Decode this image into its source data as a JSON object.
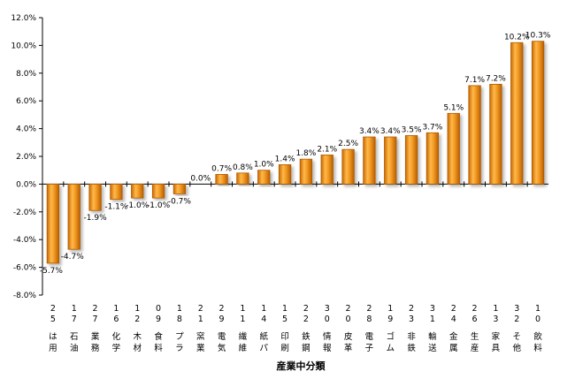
{
  "chart_data": {
    "type": "bar",
    "xlabel": "産業中分類",
    "ylabel": "",
    "ylim": [
      -0.08,
      0.12
    ],
    "y_tick_labels": [
      "-8.0%",
      "-6.0%",
      "-4.0%",
      "-2.0%",
      "0.0%",
      "2.0%",
      "4.0%",
      "6.0%",
      "8.0%",
      "10.0%",
      "12.0%"
    ],
    "grid": false,
    "bar_color": "#f0961e",
    "bar_edge_color": "#b05a00",
    "categories": [
      {
        "code": [
          "2",
          "5"
        ],
        "name": [
          "は",
          "用"
        ],
        "value": -0.057,
        "label": "-5.7%"
      },
      {
        "code": [
          "1",
          "7"
        ],
        "name": [
          "石",
          "油"
        ],
        "value": -0.047,
        "label": "-4.7%"
      },
      {
        "code": [
          "2",
          "7"
        ],
        "name": [
          "業",
          "務"
        ],
        "value": -0.019,
        "label": "-1.9%"
      },
      {
        "code": [
          "1",
          "6"
        ],
        "name": [
          "化",
          "学"
        ],
        "value": -0.011,
        "label": "-1.1%"
      },
      {
        "code": [
          "1",
          "2"
        ],
        "name": [
          "木",
          "材"
        ],
        "value": -0.01,
        "label": "-1.0%"
      },
      {
        "code": [
          "0",
          "9"
        ],
        "name": [
          "食",
          "料"
        ],
        "value": -0.01,
        "label": "-1.0%"
      },
      {
        "code": [
          "1",
          "8"
        ],
        "name": [
          "プ",
          "ラ"
        ],
        "value": -0.007,
        "label": "-0.7%"
      },
      {
        "code": [
          "2",
          "1"
        ],
        "name": [
          "窯",
          "業"
        ],
        "value": 0.0,
        "label": "0.0%"
      },
      {
        "code": [
          "2",
          "9"
        ],
        "name": [
          "電",
          "気"
        ],
        "value": 0.007,
        "label": "0.7%"
      },
      {
        "code": [
          "1",
          "1"
        ],
        "name": [
          "繊",
          "維"
        ],
        "value": 0.008,
        "label": "0.8%"
      },
      {
        "code": [
          "1",
          "4"
        ],
        "name": [
          "紙",
          "パ"
        ],
        "value": 0.01,
        "label": "1.0%"
      },
      {
        "code": [
          "1",
          "5"
        ],
        "name": [
          "印",
          "刷"
        ],
        "value": 0.014,
        "label": "1.4%"
      },
      {
        "code": [
          "2",
          "2"
        ],
        "name": [
          "鉄",
          "鋼"
        ],
        "value": 0.018,
        "label": "1.8%"
      },
      {
        "code": [
          "3",
          "0"
        ],
        "name": [
          "情",
          "報"
        ],
        "value": 0.021,
        "label": "2.1%"
      },
      {
        "code": [
          "2",
          "0"
        ],
        "name": [
          "皮",
          "革"
        ],
        "value": 0.025,
        "label": "2.5%"
      },
      {
        "code": [
          "2",
          "8"
        ],
        "name": [
          "電",
          "子"
        ],
        "value": 0.034,
        "label": "3.4%"
      },
      {
        "code": [
          "1",
          "9"
        ],
        "name": [
          "ゴ",
          "ム"
        ],
        "value": 0.034,
        "label": "3.4%"
      },
      {
        "code": [
          "2",
          "3"
        ],
        "name": [
          "非",
          "鉄"
        ],
        "value": 0.035,
        "label": "3.5%"
      },
      {
        "code": [
          "3",
          "1"
        ],
        "name": [
          "輸",
          "送"
        ],
        "value": 0.037,
        "label": "3.7%"
      },
      {
        "code": [
          "2",
          "4"
        ],
        "name": [
          "金",
          "属"
        ],
        "value": 0.051,
        "label": "5.1%"
      },
      {
        "code": [
          "2",
          "6"
        ],
        "name": [
          "生",
          "産"
        ],
        "value": 0.071,
        "label": "7.1%"
      },
      {
        "code": [
          "1",
          "3"
        ],
        "name": [
          "家",
          "具"
        ],
        "value": 0.072,
        "label": "7.2%"
      },
      {
        "code": [
          "3",
          "2"
        ],
        "name": [
          "そ",
          "他"
        ],
        "value": 0.102,
        "label": "10.2%"
      },
      {
        "code": [
          "1",
          "0"
        ],
        "name": [
          "飲",
          "料"
        ],
        "value": 0.103,
        "label": "10.3%"
      }
    ]
  }
}
